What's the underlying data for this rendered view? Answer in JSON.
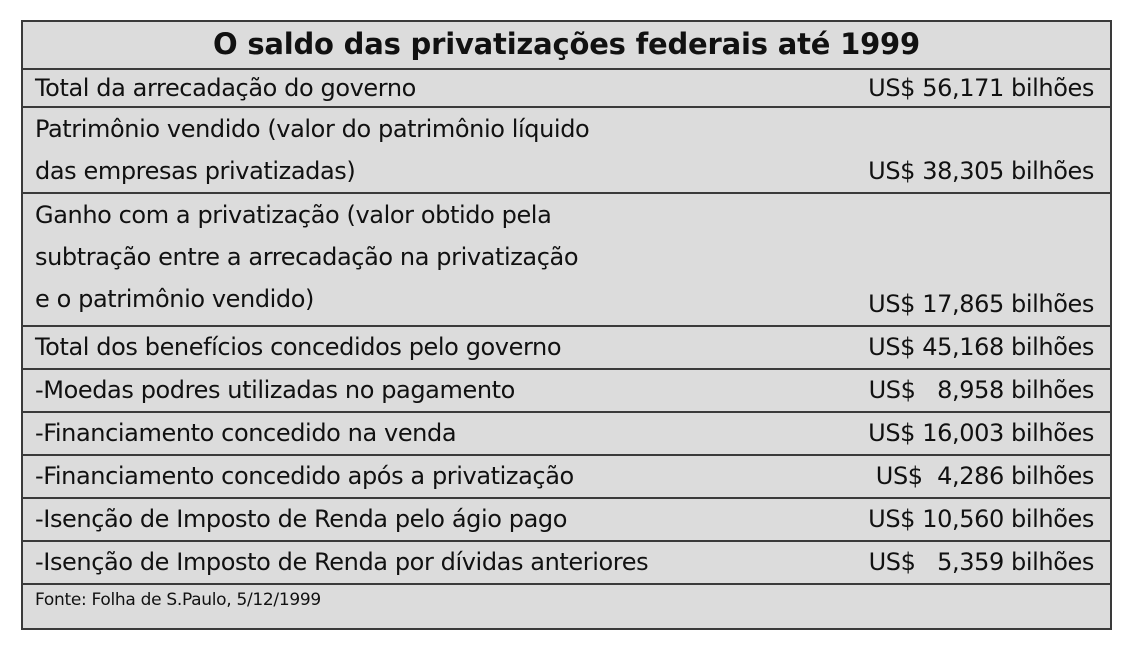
{
  "title": "O saldo das privatizações federais até 1999",
  "rows": [
    {
      "label": "Total da arrecadação do governo",
      "value": "US$ 56,171 bilhões"
    },
    {
      "label": "Patrimônio vendido (valor do patrimônio líquido\ndas empresas privatizadas)",
      "value": "US$ 38,305 bilhões"
    },
    {
      "label": "Ganho com a privatização (valor obtido pela\nsubtração entre a arrecadação na privatização\ne o patrimônio vendido)",
      "value": "US$ 17,865 bilhões"
    },
    {
      "label": "Total dos benefícios concedidos pelo governo",
      "value": "US$ 45,168 bilhões"
    },
    {
      "label": "-Moedas podres utilizadas no pagamento",
      "value": "US$   8,958 bilhões"
    },
    {
      "label": "-Financiamento concedido na venda",
      "value": "US$ 16,003 bilhões"
    },
    {
      "label": "-Financiamento concedido após a privatização",
      "value": "US$  4,286 bilhões"
    },
    {
      "label": "-Isenção de Imposto de Renda pelo ágio pago",
      "value": "US$ 10,560 bilhões"
    },
    {
      "label": "-Isenção de Imposto de Renda por dívidas anteriores",
      "value": "US$   5,359 bilhões"
    }
  ],
  "source": "Fonte: Folha de S.Paulo, 5/12/1999"
}
